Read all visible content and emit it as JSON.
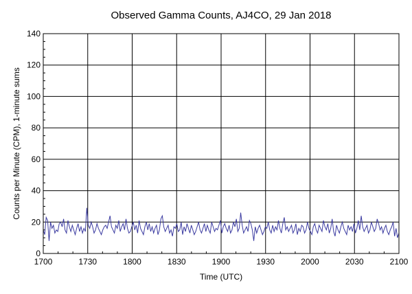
{
  "chart_data": {
    "type": "line",
    "title": "Observed Gamma Counts, AJ4CO, 29 Jan 2018",
    "xlabel": "Time (UTC)",
    "ylabel": "Counts per Minute (CPM), 1-minute sums",
    "xlim": [
      0,
      240
    ],
    "ylim": [
      0,
      140
    ],
    "x_tick_labels": [
      "1700",
      "1730",
      "1800",
      "1830",
      "1900",
      "1930",
      "2000",
      "2030",
      "2100"
    ],
    "y_tick_labels": [
      "0",
      "20",
      "40",
      "60",
      "80",
      "100",
      "120",
      "140"
    ],
    "grid": true,
    "line_color": "#3a3aa0",
    "series": [
      {
        "values": [
          15,
          12,
          23,
          21,
          8,
          20,
          16,
          18,
          13,
          15,
          14,
          19,
          20,
          17,
          22,
          15,
          13,
          21,
          17,
          14,
          18,
          15,
          12,
          16,
          19,
          14,
          17,
          13,
          16,
          14,
          29,
          18,
          16,
          20,
          17,
          13,
          15,
          19,
          16,
          14,
          12,
          15,
          17,
          18,
          16,
          20,
          24,
          17,
          15,
          13,
          18,
          16,
          21,
          14,
          17,
          19,
          15,
          22,
          16,
          13,
          14,
          17,
          20,
          15,
          18,
          13,
          21,
          16,
          14,
          12,
          17,
          20,
          15,
          19,
          14,
          17,
          13,
          16,
          18,
          12,
          15,
          22,
          24,
          17,
          14,
          16,
          18,
          13,
          15,
          11,
          17,
          16,
          19,
          14,
          15,
          20,
          12,
          17,
          14,
          19,
          16,
          13,
          18,
          15,
          12,
          14,
          17,
          20,
          15,
          13,
          16,
          19,
          14,
          18,
          15,
          13,
          20,
          17,
          14,
          16,
          15,
          18,
          21,
          13,
          17,
          19,
          16,
          14,
          18,
          13,
          15,
          20,
          17,
          22,
          14,
          16,
          26,
          18,
          13,
          15,
          17,
          14,
          21,
          19,
          15,
          8,
          17,
          13,
          16,
          18,
          15,
          12,
          14,
          17,
          16,
          20,
          15,
          13,
          18,
          14,
          17,
          15,
          21,
          16,
          13,
          19,
          23,
          15,
          17,
          14,
          16,
          18,
          13,
          15,
          19,
          12,
          16,
          14,
          18,
          17,
          13,
          15,
          20,
          16,
          14,
          12,
          17,
          19,
          15,
          13,
          18,
          16,
          14,
          21,
          17,
          15,
          19,
          13,
          16,
          22,
          14,
          11,
          18,
          15,
          13,
          17,
          20,
          16,
          14,
          12,
          18,
          15,
          17,
          14,
          19,
          13,
          16,
          21,
          15,
          24,
          17,
          14,
          16,
          18,
          13,
          15,
          20,
          17,
          14,
          16,
          22,
          19,
          15,
          17,
          13,
          16,
          18,
          14,
          12,
          15,
          17,
          20,
          11,
          16,
          10,
          13
        ]
      }
    ]
  }
}
